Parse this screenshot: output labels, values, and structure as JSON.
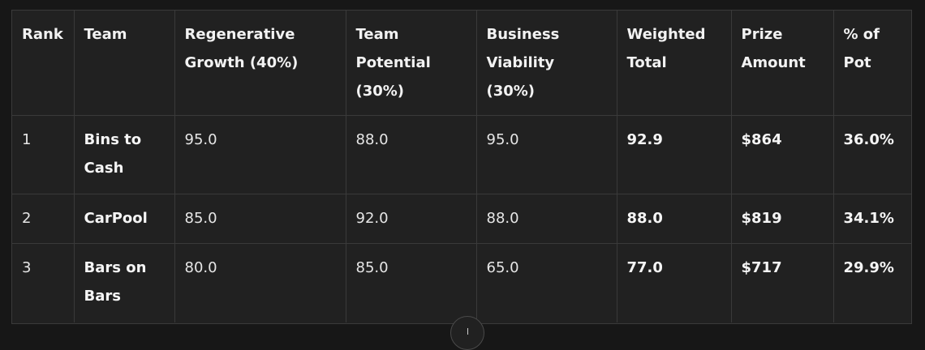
{
  "table": {
    "headers": [
      "Rank",
      "Team",
      "Regenerative Growth (40%)",
      "Team Potential (30%)",
      "Business Viability (30%)",
      "Weighted Total",
      "Prize Amount",
      "% of Pot"
    ],
    "rows": [
      [
        "1",
        "Bins to Cash",
        "95.0",
        "88.0",
        "95.0",
        "92.9",
        "$864",
        "36.0%"
      ],
      [
        "2",
        "CarPool",
        "85.0",
        "92.0",
        "88.0",
        "88.0",
        "$819",
        "34.1%"
      ],
      [
        "3",
        "Bars on Bars",
        "80.0",
        "85.0",
        "65.0",
        "77.0",
        "$717",
        "29.9%"
      ]
    ]
  },
  "icons": {
    "scroll_down": "arrow-down-icon"
  },
  "colors": {
    "background": "#171717",
    "table_background": "#212121",
    "border": "#3a3a3a",
    "text": "#ececec"
  }
}
